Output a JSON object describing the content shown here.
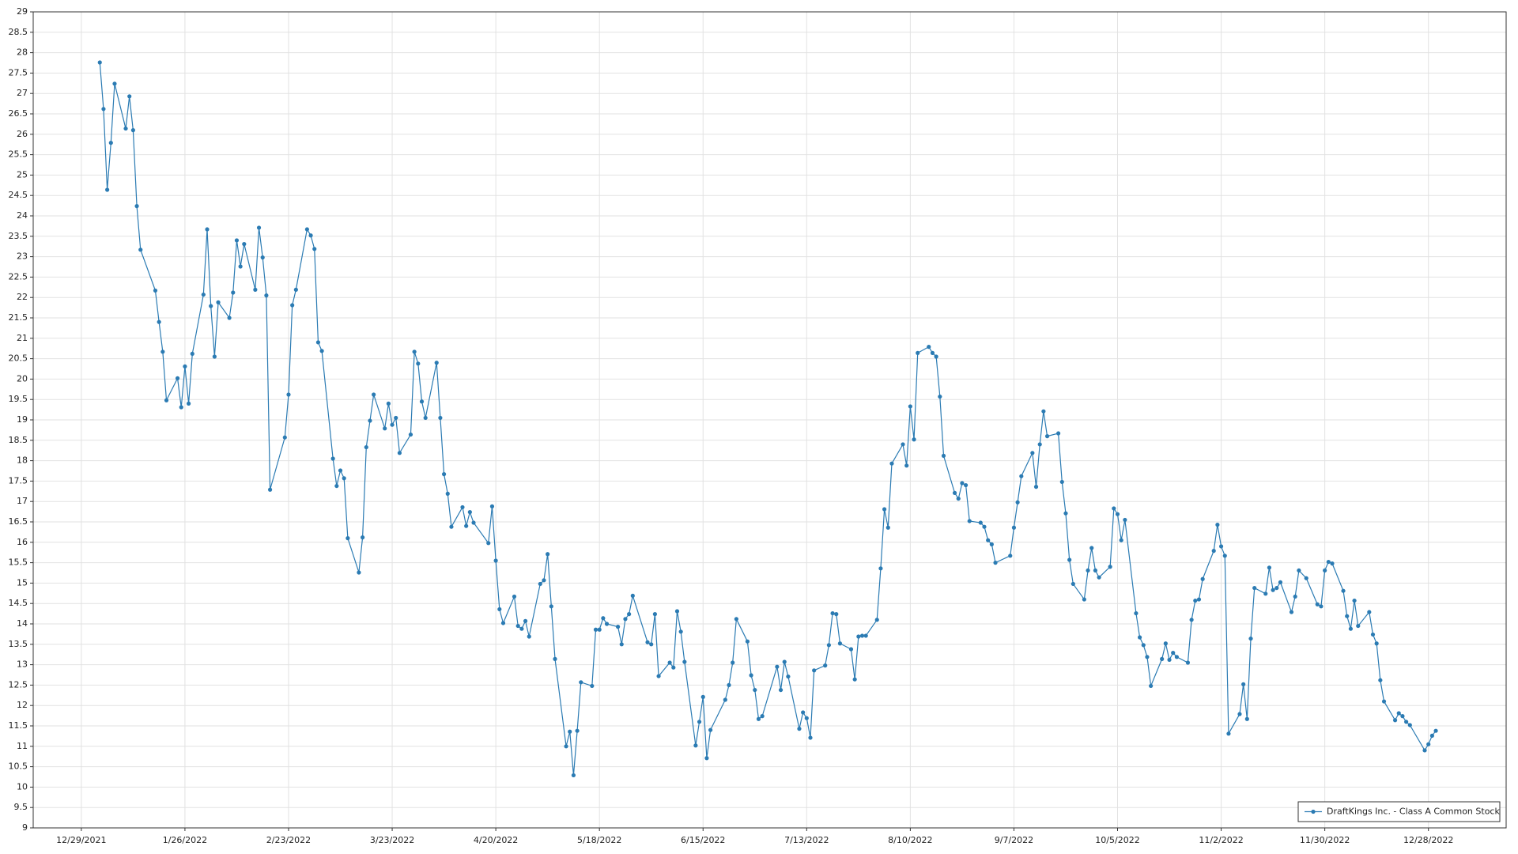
{
  "chart_data": {
    "type": "line",
    "x": [
      "1/3/2022",
      "1/4/2022",
      "1/5/2022",
      "1/6/2022",
      "1/7/2022",
      "1/10/2022",
      "1/11/2022",
      "1/12/2022",
      "1/13/2022",
      "1/14/2022",
      "1/18/2022",
      "1/19/2022",
      "1/20/2022",
      "1/21/2022",
      "1/24/2022",
      "1/25/2022",
      "1/26/2022",
      "1/27/2022",
      "1/28/2022",
      "1/31/2022",
      "2/1/2022",
      "2/2/2022",
      "2/3/2022",
      "2/4/2022",
      "2/7/2022",
      "2/8/2022",
      "2/9/2022",
      "2/10/2022",
      "2/11/2022",
      "2/14/2022",
      "2/15/2022",
      "2/16/2022",
      "2/17/2022",
      "2/18/2022",
      "2/22/2022",
      "2/23/2022",
      "2/24/2022",
      "2/25/2022",
      "2/28/2022",
      "3/1/2022",
      "3/2/2022",
      "3/3/2022",
      "3/4/2022",
      "3/7/2022",
      "3/8/2022",
      "3/9/2022",
      "3/10/2022",
      "3/11/2022",
      "3/14/2022",
      "3/15/2022",
      "3/16/2022",
      "3/17/2022",
      "3/18/2022",
      "3/21/2022",
      "3/22/2022",
      "3/23/2022",
      "3/24/2022",
      "3/25/2022",
      "3/28/2022",
      "3/29/2022",
      "3/30/2022",
      "3/31/2022",
      "4/1/2022",
      "4/4/2022",
      "4/5/2022",
      "4/6/2022",
      "4/7/2022",
      "4/8/2022",
      "4/11/2022",
      "4/12/2022",
      "4/13/2022",
      "4/14/2022",
      "4/18/2022",
      "4/19/2022",
      "4/20/2022",
      "4/21/2022",
      "4/22/2022",
      "4/25/2022",
      "4/26/2022",
      "4/27/2022",
      "4/28/2022",
      "4/29/2022",
      "5/2/2022",
      "5/3/2022",
      "5/4/2022",
      "5/5/2022",
      "5/6/2022",
      "5/9/2022",
      "5/10/2022",
      "5/11/2022",
      "5/12/2022",
      "5/13/2022",
      "5/16/2022",
      "5/17/2022",
      "5/18/2022",
      "5/19/2022",
      "5/20/2022",
      "5/23/2022",
      "5/24/2022",
      "5/25/2022",
      "5/26/2022",
      "5/27/2022",
      "5/31/2022",
      "6/1/2022",
      "6/2/2022",
      "6/3/2022",
      "6/6/2022",
      "6/7/2022",
      "6/8/2022",
      "6/9/2022",
      "6/10/2022",
      "6/13/2022",
      "6/14/2022",
      "6/15/2022",
      "6/16/2022",
      "6/17/2022",
      "6/21/2022",
      "6/22/2022",
      "6/23/2022",
      "6/24/2022",
      "6/27/2022",
      "6/28/2022",
      "6/29/2022",
      "6/30/2022",
      "7/1/2022",
      "7/5/2022",
      "7/6/2022",
      "7/7/2022",
      "7/8/2022",
      "7/11/2022",
      "7/12/2022",
      "7/13/2022",
      "7/14/2022",
      "7/15/2022",
      "7/18/2022",
      "7/19/2022",
      "7/20/2022",
      "7/21/2022",
      "7/22/2022",
      "7/25/2022",
      "7/26/2022",
      "7/27/2022",
      "7/28/2022",
      "7/29/2022",
      "8/1/2022",
      "8/2/2022",
      "8/3/2022",
      "8/4/2022",
      "8/5/2022",
      "8/8/2022",
      "8/9/2022",
      "8/10/2022",
      "8/11/2022",
      "8/12/2022",
      "8/15/2022",
      "8/16/2022",
      "8/17/2022",
      "8/18/2022",
      "8/19/2022",
      "8/22/2022",
      "8/23/2022",
      "8/24/2022",
      "8/25/2022",
      "8/26/2022",
      "8/29/2022",
      "8/30/2022",
      "8/31/2022",
      "9/1/2022",
      "9/2/2022",
      "9/6/2022",
      "9/7/2022",
      "9/8/2022",
      "9/9/2022",
      "9/12/2022",
      "9/13/2022",
      "9/14/2022",
      "9/15/2022",
      "9/16/2022",
      "9/19/2022",
      "9/20/2022",
      "9/21/2022",
      "9/22/2022",
      "9/23/2022",
      "9/26/2022",
      "9/27/2022",
      "9/28/2022",
      "9/29/2022",
      "9/30/2022",
      "10/3/2022",
      "10/4/2022",
      "10/5/2022",
      "10/6/2022",
      "10/7/2022",
      "10/10/2022",
      "10/11/2022",
      "10/12/2022",
      "10/13/2022",
      "10/14/2022",
      "10/17/2022",
      "10/18/2022",
      "10/19/2022",
      "10/20/2022",
      "10/21/2022",
      "10/24/2022",
      "10/25/2022",
      "10/26/2022",
      "10/27/2022",
      "10/28/2022",
      "10/31/2022",
      "11/1/2022",
      "11/2/2022",
      "11/3/2022",
      "11/4/2022",
      "11/7/2022",
      "11/8/2022",
      "11/9/2022",
      "11/10/2022",
      "11/11/2022",
      "11/14/2022",
      "11/15/2022",
      "11/16/2022",
      "11/17/2022",
      "11/18/2022",
      "11/21/2022",
      "11/22/2022",
      "11/23/2022",
      "11/25/2022",
      "11/28/2022",
      "11/29/2022",
      "11/30/2022",
      "12/1/2022",
      "12/2/2022",
      "12/5/2022",
      "12/6/2022",
      "12/7/2022",
      "12/8/2022",
      "12/9/2022",
      "12/12/2022",
      "12/13/2022",
      "12/14/2022",
      "12/15/2022",
      "12/16/2022",
      "12/19/2022",
      "12/20/2022",
      "12/21/2022",
      "12/22/2022",
      "12/23/2022",
      "12/27/2022",
      "12/28/2022",
      "12/29/2022",
      "12/30/2022"
    ],
    "series": [
      {
        "name": "DraftKings Inc. - Class A Common Stock",
        "color": "#2b7bb3",
        "values": [
          27.76,
          26.62,
          24.64,
          25.79,
          27.24,
          26.14,
          26.93,
          26.1,
          24.24,
          23.17,
          22.17,
          21.4,
          20.67,
          19.48,
          20.02,
          19.31,
          20.31,
          19.4,
          20.62,
          22.07,
          23.67,
          21.79,
          20.55,
          21.88,
          21.5,
          22.12,
          23.4,
          22.76,
          23.31,
          22.19,
          23.71,
          22.98,
          22.05,
          17.29,
          18.57,
          19.62,
          21.81,
          22.19,
          23.67,
          23.52,
          23.19,
          20.9,
          20.69,
          18.05,
          17.38,
          17.76,
          17.57,
          16.1,
          15.26,
          16.12,
          18.33,
          18.98,
          19.62,
          18.79,
          19.4,
          18.88,
          19.05,
          18.19,
          18.64,
          20.67,
          20.38,
          19.45,
          19.05,
          20.4,
          19.05,
          17.67,
          17.19,
          16.38,
          16.86,
          16.4,
          16.74,
          16.48,
          15.98,
          16.88,
          15.55,
          14.36,
          14.02,
          14.67,
          13.95,
          13.88,
          14.07,
          13.69,
          14.98,
          15.07,
          15.71,
          14.43,
          13.14,
          11.0,
          11.36,
          10.29,
          11.38,
          12.57,
          12.48,
          13.86,
          13.86,
          14.14,
          14.0,
          13.93,
          13.5,
          14.12,
          14.24,
          14.69,
          13.55,
          13.5,
          14.24,
          12.72,
          13.05,
          12.93,
          14.31,
          13.81,
          13.07,
          11.02,
          11.6,
          12.21,
          10.71,
          11.4,
          12.14,
          12.5,
          13.05,
          14.12,
          13.57,
          12.74,
          12.38,
          11.67,
          11.74,
          12.95,
          12.38,
          13.07,
          12.71,
          11.43,
          11.83,
          11.69,
          11.21,
          12.86,
          12.98,
          13.48,
          14.26,
          14.24,
          13.52,
          13.38,
          12.64,
          13.69,
          13.71,
          13.71,
          14.1,
          15.36,
          16.81,
          16.36,
          17.93,
          18.4,
          17.88,
          19.33,
          18.52,
          20.64,
          20.79,
          20.64,
          20.55,
          19.57,
          18.12,
          17.21,
          17.07,
          17.45,
          17.4,
          16.52,
          16.48,
          16.38,
          16.05,
          15.95,
          15.5,
          15.67,
          16.36,
          16.98,
          17.62,
          18.19,
          17.36,
          18.4,
          19.21,
          18.6,
          18.67,
          17.48,
          16.71,
          15.57,
          14.98,
          14.6,
          15.31,
          15.86,
          15.31,
          15.14,
          15.4,
          16.83,
          16.69,
          16.05,
          16.55,
          14.26,
          13.67,
          13.48,
          13.19,
          12.48,
          13.14,
          13.52,
          13.12,
          13.29,
          13.19,
          13.05,
          14.1,
          14.57,
          14.6,
          15.1,
          15.79,
          16.43,
          15.9,
          15.67,
          11.31,
          11.79,
          12.52,
          11.67,
          13.64,
          14.88,
          14.74,
          15.38,
          14.83,
          14.88,
          15.02,
          14.29,
          14.67,
          15.31,
          15.12,
          14.48,
          14.43,
          15.31,
          15.52,
          15.48,
          14.81,
          14.19,
          13.88,
          14.57,
          13.95,
          14.29,
          13.74,
          13.52,
          12.62,
          12.1,
          11.64,
          11.81,
          11.74,
          11.6,
          11.52,
          10.9,
          11.05,
          11.26,
          11.38
        ]
      }
    ],
    "xlim": [
      "12/16/2021",
      "1/18/2023"
    ],
    "xticks": [
      "12/29/2021",
      "1/26/2022",
      "2/23/2022",
      "3/23/2022",
      "4/20/2022",
      "5/18/2022",
      "6/15/2022",
      "7/13/2022",
      "8/10/2022",
      "9/7/2022",
      "10/5/2022",
      "11/2/2022",
      "11/30/2022",
      "12/28/2022"
    ],
    "ylim": [
      9,
      29
    ],
    "yticks": [
      9,
      9.5,
      10,
      10.5,
      11,
      11.5,
      12,
      12.5,
      13,
      13.5,
      14,
      14.5,
      15,
      15.5,
      16,
      16.5,
      17,
      17.5,
      18,
      18.5,
      19,
      19.5,
      20,
      20.5,
      21,
      21.5,
      22,
      22.5,
      23,
      23.5,
      24,
      24.5,
      25,
      25.5,
      26,
      26.5,
      27,
      27.5,
      28,
      28.5,
      29
    ],
    "grid": true,
    "legend": "lower right"
  }
}
